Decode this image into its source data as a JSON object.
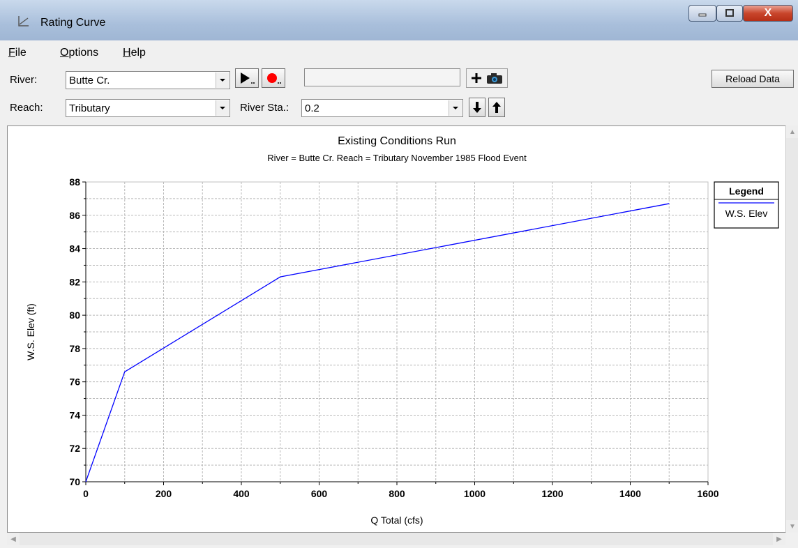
{
  "window": {
    "title": "Rating Curve",
    "icons": {
      "app": "chart-line-icon",
      "minimize": "minimize-icon",
      "maximize": "maximize-icon",
      "close": "close-icon"
    },
    "close_glyph": "X"
  },
  "menu": {
    "file": {
      "mnemonic": "F",
      "rest": "ile"
    },
    "options": {
      "mnemonic": "O",
      "rest": "ptions"
    },
    "help": {
      "mnemonic": "H",
      "rest": "elp"
    }
  },
  "toolbar": {
    "river_label": "River:",
    "river_value": "Butte Cr.",
    "reach_label": "Reach:",
    "reach_value": "Tributary",
    "station_label": "River Sta.:",
    "station_value": "0.2",
    "reload_label": "Reload Data",
    "search_value": "",
    "icons": {
      "play": "play-animation-icon",
      "record": "record-icon",
      "add": "plus-icon",
      "camera": "camera-icon",
      "down": "arrow-down-icon",
      "up": "arrow-up-icon",
      "dropdown": "chevron-down-icon"
    }
  },
  "colors": {
    "series": "#0000ff",
    "grid": "#b8b8b8",
    "record": "#ff0000"
  },
  "chart_data": {
    "type": "line",
    "title": "Existing Conditions Run",
    "subtitle": "River = Butte Cr.   Reach = Tributary     November 1985 Flood Event",
    "xlabel": "Q Total  (cfs)",
    "ylabel": "W.S. Elev  (ft)",
    "xlim": [
      0,
      1600
    ],
    "ylim": [
      70,
      88
    ],
    "xticks": [
      0,
      200,
      400,
      600,
      800,
      1000,
      1200,
      1400,
      1600
    ],
    "yticks": [
      70,
      72,
      74,
      76,
      78,
      80,
      82,
      84,
      86,
      88
    ],
    "grid": true,
    "legend_title": "Legend",
    "legend_placement": "right",
    "series": [
      {
        "name": "W.S. Elev",
        "x": [
          0,
          100,
          500,
          1500
        ],
        "y": [
          70.0,
          76.6,
          82.3,
          86.7
        ]
      }
    ]
  }
}
